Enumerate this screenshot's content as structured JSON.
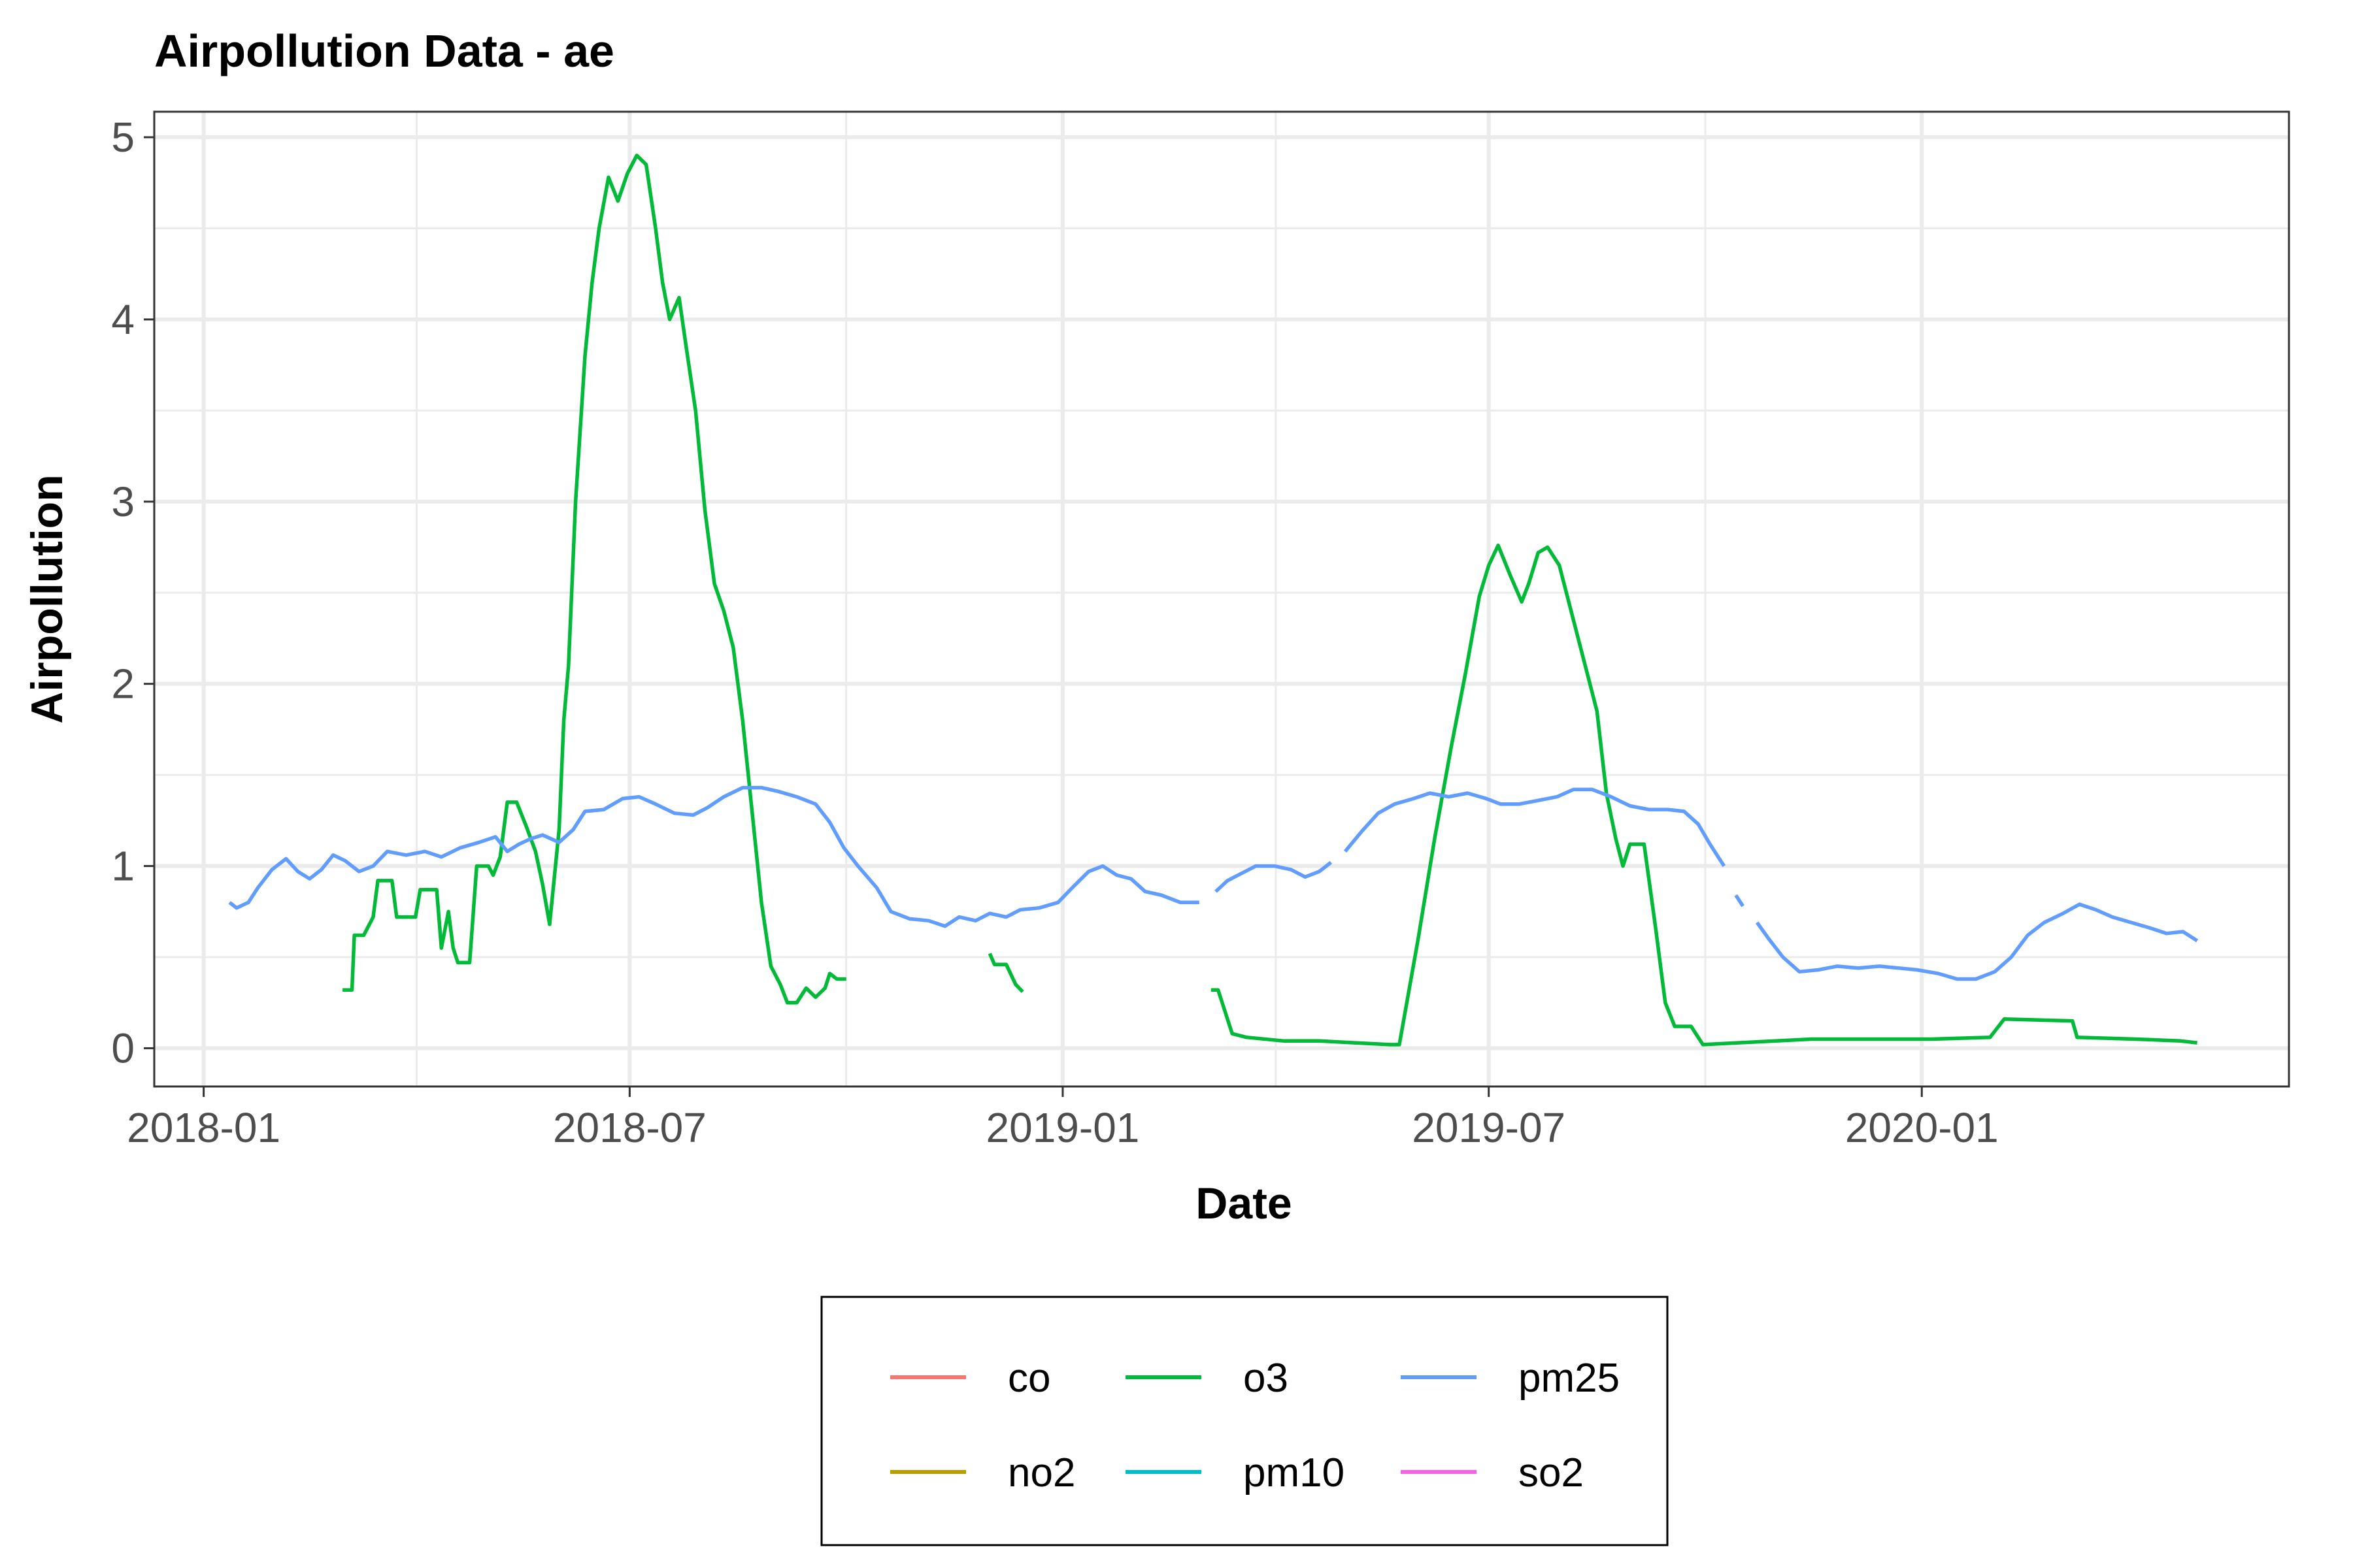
{
  "chart_data": {
    "type": "line",
    "title": "Airpollution Data - ae",
    "xlabel": "Date",
    "ylabel": "Airpollution",
    "x_type": "date",
    "xlim": [
      "2017-12-11",
      "2020-06-05"
    ],
    "ylim": [
      -0.21,
      5.14
    ],
    "x_ticks": [
      "2018-01-01",
      "2018-07-01",
      "2019-01-01",
      "2019-07-01",
      "2020-01-01"
    ],
    "x_tick_labels": [
      "2018-01",
      "2018-07",
      "2019-01",
      "2019-07",
      "2020-01"
    ],
    "y_ticks": [
      0,
      1,
      2,
      3,
      4,
      5
    ],
    "y_tick_labels": [
      "0",
      "1",
      "2",
      "3",
      "4",
      "5"
    ],
    "grid": true,
    "legend_position": "bottom",
    "series": [
      {
        "name": "co",
        "color": "#F8766D",
        "segments": []
      },
      {
        "name": "no2",
        "color": "#B79F00",
        "segments": []
      },
      {
        "name": "o3",
        "color": "#00BA38",
        "segments": [
          [
            [
              "2018-03-01",
              0.32
            ],
            [
              "2018-03-05",
              0.32
            ],
            [
              "2018-03-06",
              0.62
            ],
            [
              "2018-03-10",
              0.62
            ],
            [
              "2018-03-14",
              0.72
            ],
            [
              "2018-03-16",
              0.92
            ],
            [
              "2018-03-22",
              0.92
            ],
            [
              "2018-03-24",
              0.72
            ],
            [
              "2018-04-01",
              0.72
            ],
            [
              "2018-04-03",
              0.87
            ],
            [
              "2018-04-10",
              0.87
            ],
            [
              "2018-04-12",
              0.55
            ],
            [
              "2018-04-15",
              0.75
            ],
            [
              "2018-04-17",
              0.55
            ],
            [
              "2018-04-19",
              0.47
            ],
            [
              "2018-04-24",
              0.47
            ],
            [
              "2018-04-27",
              1.0
            ],
            [
              "2018-05-02",
              1.0
            ],
            [
              "2018-05-04",
              0.95
            ],
            [
              "2018-05-07",
              1.05
            ],
            [
              "2018-05-10",
              1.35
            ],
            [
              "2018-05-14",
              1.35
            ],
            [
              "2018-05-18",
              1.22
            ],
            [
              "2018-05-22",
              1.08
            ],
            [
              "2018-05-25",
              0.9
            ],
            [
              "2018-05-28",
              0.68
            ],
            [
              "2018-06-01",
              1.2
            ],
            [
              "2018-06-03",
              1.8
            ],
            [
              "2018-06-05",
              2.1
            ],
            [
              "2018-06-08",
              3.0
            ],
            [
              "2018-06-12",
              3.8
            ],
            [
              "2018-06-15",
              4.2
            ],
            [
              "2018-06-18",
              4.5
            ],
            [
              "2018-06-22",
              4.78
            ],
            [
              "2018-06-26",
              4.65
            ],
            [
              "2018-06-30",
              4.8
            ],
            [
              "2018-07-04",
              4.9
            ],
            [
              "2018-07-08",
              4.85
            ],
            [
              "2018-07-12",
              4.5
            ],
            [
              "2018-07-15",
              4.2
            ],
            [
              "2018-07-18",
              4.0
            ],
            [
              "2018-07-22",
              4.12
            ],
            [
              "2018-07-25",
              3.85
            ],
            [
              "2018-07-29",
              3.5
            ],
            [
              "2018-08-02",
              2.95
            ],
            [
              "2018-08-06",
              2.55
            ],
            [
              "2018-08-10",
              2.4
            ],
            [
              "2018-08-14",
              2.2
            ],
            [
              "2018-08-18",
              1.8
            ],
            [
              "2018-08-22",
              1.3
            ],
            [
              "2018-08-26",
              0.8
            ],
            [
              "2018-08-30",
              0.45
            ],
            [
              "2018-09-03",
              0.35
            ],
            [
              "2018-09-06",
              0.25
            ],
            [
              "2018-09-10",
              0.25
            ],
            [
              "2018-09-14",
              0.33
            ],
            [
              "2018-09-18",
              0.28
            ],
            [
              "2018-09-22",
              0.33
            ],
            [
              "2018-09-24",
              0.41
            ],
            [
              "2018-09-27",
              0.38
            ],
            [
              "2018-10-01",
              0.38
            ]
          ],
          [
            [
              "2018-12-01",
              0.52
            ],
            [
              "2018-12-03",
              0.46
            ],
            [
              "2018-12-08",
              0.46
            ],
            [
              "2018-12-12",
              0.35
            ],
            [
              "2018-12-15",
              0.31
            ]
          ],
          [
            [
              "2019-03-05",
              0.32
            ],
            [
              "2019-03-08",
              0.32
            ],
            [
              "2019-03-11",
              0.2
            ],
            [
              "2019-03-14",
              0.08
            ],
            [
              "2019-03-20",
              0.06
            ],
            [
              "2019-04-05",
              0.04
            ],
            [
              "2019-04-20",
              0.04
            ],
            [
              "2019-05-05",
              0.03
            ],
            [
              "2019-05-20",
              0.02
            ],
            [
              "2019-05-24",
              0.02
            ],
            [
              "2019-06-01",
              0.6
            ],
            [
              "2019-06-08",
              1.15
            ],
            [
              "2019-06-15",
              1.65
            ],
            [
              "2019-06-21",
              2.05
            ],
            [
              "2019-06-27",
              2.48
            ],
            [
              "2019-07-01",
              2.65
            ],
            [
              "2019-07-05",
              2.76
            ],
            [
              "2019-07-10",
              2.6
            ],
            [
              "2019-07-15",
              2.45
            ],
            [
              "2019-07-18",
              2.55
            ],
            [
              "2019-07-22",
              2.72
            ],
            [
              "2019-07-26",
              2.75
            ],
            [
              "2019-07-31",
              2.65
            ],
            [
              "2019-08-06",
              2.35
            ],
            [
              "2019-08-12",
              2.05
            ],
            [
              "2019-08-16",
              1.85
            ],
            [
              "2019-08-20",
              1.4
            ],
            [
              "2019-08-24",
              1.15
            ],
            [
              "2019-08-27",
              1.0
            ],
            [
              "2019-08-30",
              1.12
            ],
            [
              "2019-09-05",
              1.12
            ],
            [
              "2019-09-10",
              0.65
            ],
            [
              "2019-09-14",
              0.25
            ],
            [
              "2019-09-18",
              0.12
            ],
            [
              "2019-09-25",
              0.12
            ],
            [
              "2019-09-30",
              0.02
            ],
            [
              "2019-10-15",
              0.03
            ],
            [
              "2019-11-15",
              0.05
            ],
            [
              "2019-12-15",
              0.05
            ],
            [
              "2020-01-05",
              0.05
            ],
            [
              "2020-01-30",
              0.06
            ],
            [
              "2020-02-05",
              0.16
            ],
            [
              "2020-03-05",
              0.15
            ],
            [
              "2020-03-07",
              0.06
            ],
            [
              "2020-04-01",
              0.05
            ],
            [
              "2020-04-20",
              0.04
            ],
            [
              "2020-04-27",
              0.03
            ]
          ]
        ]
      },
      {
        "name": "pm10",
        "color": "#00BFC4",
        "segments": []
      },
      {
        "name": "pm25",
        "color": "#619CFF",
        "segments": [
          [
            [
              "2018-01-12",
              0.8
            ],
            [
              "2018-01-15",
              0.77
            ],
            [
              "2018-01-20",
              0.8
            ],
            [
              "2018-01-24",
              0.88
            ],
            [
              "2018-01-30",
              0.98
            ],
            [
              "2018-02-05",
              1.04
            ],
            [
              "2018-02-10",
              0.97
            ],
            [
              "2018-02-15",
              0.93
            ],
            [
              "2018-02-20",
              0.98
            ],
            [
              "2018-02-25",
              1.06
            ],
            [
              "2018-03-02",
              1.03
            ],
            [
              "2018-03-08",
              0.97
            ],
            [
              "2018-03-14",
              1.0
            ],
            [
              "2018-03-20",
              1.08
            ],
            [
              "2018-03-28",
              1.06
            ],
            [
              "2018-04-05",
              1.08
            ],
            [
              "2018-04-12",
              1.05
            ],
            [
              "2018-04-20",
              1.1
            ],
            [
              "2018-04-28",
              1.13
            ],
            [
              "2018-05-05",
              1.16
            ],
            [
              "2018-05-10",
              1.08
            ],
            [
              "2018-05-15",
              1.12
            ],
            [
              "2018-05-20",
              1.15
            ],
            [
              "2018-05-25",
              1.17
            ],
            [
              "2018-06-01",
              1.13
            ],
            [
              "2018-06-07",
              1.2
            ],
            [
              "2018-06-12",
              1.3
            ],
            [
              "2018-06-20",
              1.31
            ],
            [
              "2018-06-28",
              1.37
            ],
            [
              "2018-07-05",
              1.38
            ],
            [
              "2018-07-12",
              1.34
            ],
            [
              "2018-07-20",
              1.29
            ],
            [
              "2018-07-28",
              1.28
            ],
            [
              "2018-08-03",
              1.32
            ],
            [
              "2018-08-10",
              1.38
            ],
            [
              "2018-08-18",
              1.43
            ],
            [
              "2018-08-26",
              1.43
            ],
            [
              "2018-09-02",
              1.41
            ],
            [
              "2018-09-10",
              1.38
            ],
            [
              "2018-09-18",
              1.34
            ],
            [
              "2018-09-24",
              1.24
            ],
            [
              "2018-09-30",
              1.1
            ],
            [
              "2018-10-06",
              1.0
            ],
            [
              "2018-10-14",
              0.88
            ],
            [
              "2018-10-20",
              0.75
            ],
            [
              "2018-10-28",
              0.71
            ],
            [
              "2018-11-05",
              0.7
            ],
            [
              "2018-11-12",
              0.67
            ],
            [
              "2018-11-18",
              0.72
            ],
            [
              "2018-11-25",
              0.7
            ],
            [
              "2018-12-01",
              0.74
            ],
            [
              "2018-12-08",
              0.72
            ],
            [
              "2018-12-14",
              0.76
            ],
            [
              "2018-12-22",
              0.77
            ],
            [
              "2018-12-30",
              0.8
            ],
            [
              "2019-01-05",
              0.88
            ],
            [
              "2019-01-12",
              0.97
            ],
            [
              "2019-01-18",
              1.0
            ],
            [
              "2019-01-24",
              0.95
            ],
            [
              "2019-01-30",
              0.93
            ],
            [
              "2019-02-05",
              0.86
            ],
            [
              "2019-02-12",
              0.84
            ],
            [
              "2019-02-20",
              0.8
            ],
            [
              "2019-02-28",
              0.8
            ]
          ],
          [
            [
              "2019-03-07",
              0.86
            ],
            [
              "2019-03-12",
              0.92
            ],
            [
              "2019-03-18",
              0.96
            ],
            [
              "2019-03-24",
              1.0
            ],
            [
              "2019-04-01",
              1.0
            ],
            [
              "2019-04-08",
              0.98
            ],
            [
              "2019-04-14",
              0.94
            ],
            [
              "2019-04-20",
              0.97
            ],
            [
              "2019-04-25",
              1.02
            ]
          ],
          [
            [
              "2019-05-01",
              1.08
            ],
            [
              "2019-05-08",
              1.19
            ],
            [
              "2019-05-15",
              1.29
            ],
            [
              "2019-05-22",
              1.34
            ],
            [
              "2019-05-30",
              1.37
            ],
            [
              "2019-06-06",
              1.4
            ],
            [
              "2019-06-14",
              1.38
            ],
            [
              "2019-06-22",
              1.4
            ],
            [
              "2019-06-30",
              1.37
            ],
            [
              "2019-07-06",
              1.34
            ],
            [
              "2019-07-14",
              1.34
            ],
            [
              "2019-07-22",
              1.36
            ],
            [
              "2019-07-30",
              1.38
            ],
            [
              "2019-08-06",
              1.42
            ],
            [
              "2019-08-14",
              1.42
            ],
            [
              "2019-08-22",
              1.38
            ],
            [
              "2019-08-30",
              1.33
            ],
            [
              "2019-09-07",
              1.31
            ],
            [
              "2019-09-15",
              1.31
            ],
            [
              "2019-09-22",
              1.3
            ],
            [
              "2019-09-28",
              1.23
            ],
            [
              "2019-10-03",
              1.12
            ],
            [
              "2019-10-09",
              1.0
            ]
          ],
          [
            [
              "2019-10-14",
              0.84
            ],
            [
              "2019-10-17",
              0.78
            ]
          ],
          [
            [
              "2019-10-23",
              0.69
            ],
            [
              "2019-10-28",
              0.6
            ],
            [
              "2019-11-03",
              0.5
            ],
            [
              "2019-11-10",
              0.42
            ],
            [
              "2019-11-18",
              0.43
            ],
            [
              "2019-11-26",
              0.45
            ],
            [
              "2019-12-05",
              0.44
            ],
            [
              "2019-12-14",
              0.45
            ],
            [
              "2019-12-22",
              0.44
            ],
            [
              "2019-12-30",
              0.43
            ],
            [
              "2020-01-08",
              0.41
            ],
            [
              "2020-01-16",
              0.38
            ],
            [
              "2020-01-24",
              0.38
            ],
            [
              "2020-02-01",
              0.42
            ],
            [
              "2020-02-08",
              0.5
            ],
            [
              "2020-02-15",
              0.62
            ],
            [
              "2020-02-22",
              0.69
            ],
            [
              "2020-03-01",
              0.74
            ],
            [
              "2020-03-08",
              0.79
            ],
            [
              "2020-03-15",
              0.76
            ],
            [
              "2020-03-22",
              0.72
            ],
            [
              "2020-03-30",
              0.69
            ],
            [
              "2020-04-07",
              0.66
            ],
            [
              "2020-04-14",
              0.63
            ],
            [
              "2020-04-21",
              0.64
            ],
            [
              "2020-04-27",
              0.59
            ]
          ]
        ]
      },
      {
        "name": "so2",
        "color": "#F564E3",
        "segments": []
      }
    ]
  }
}
